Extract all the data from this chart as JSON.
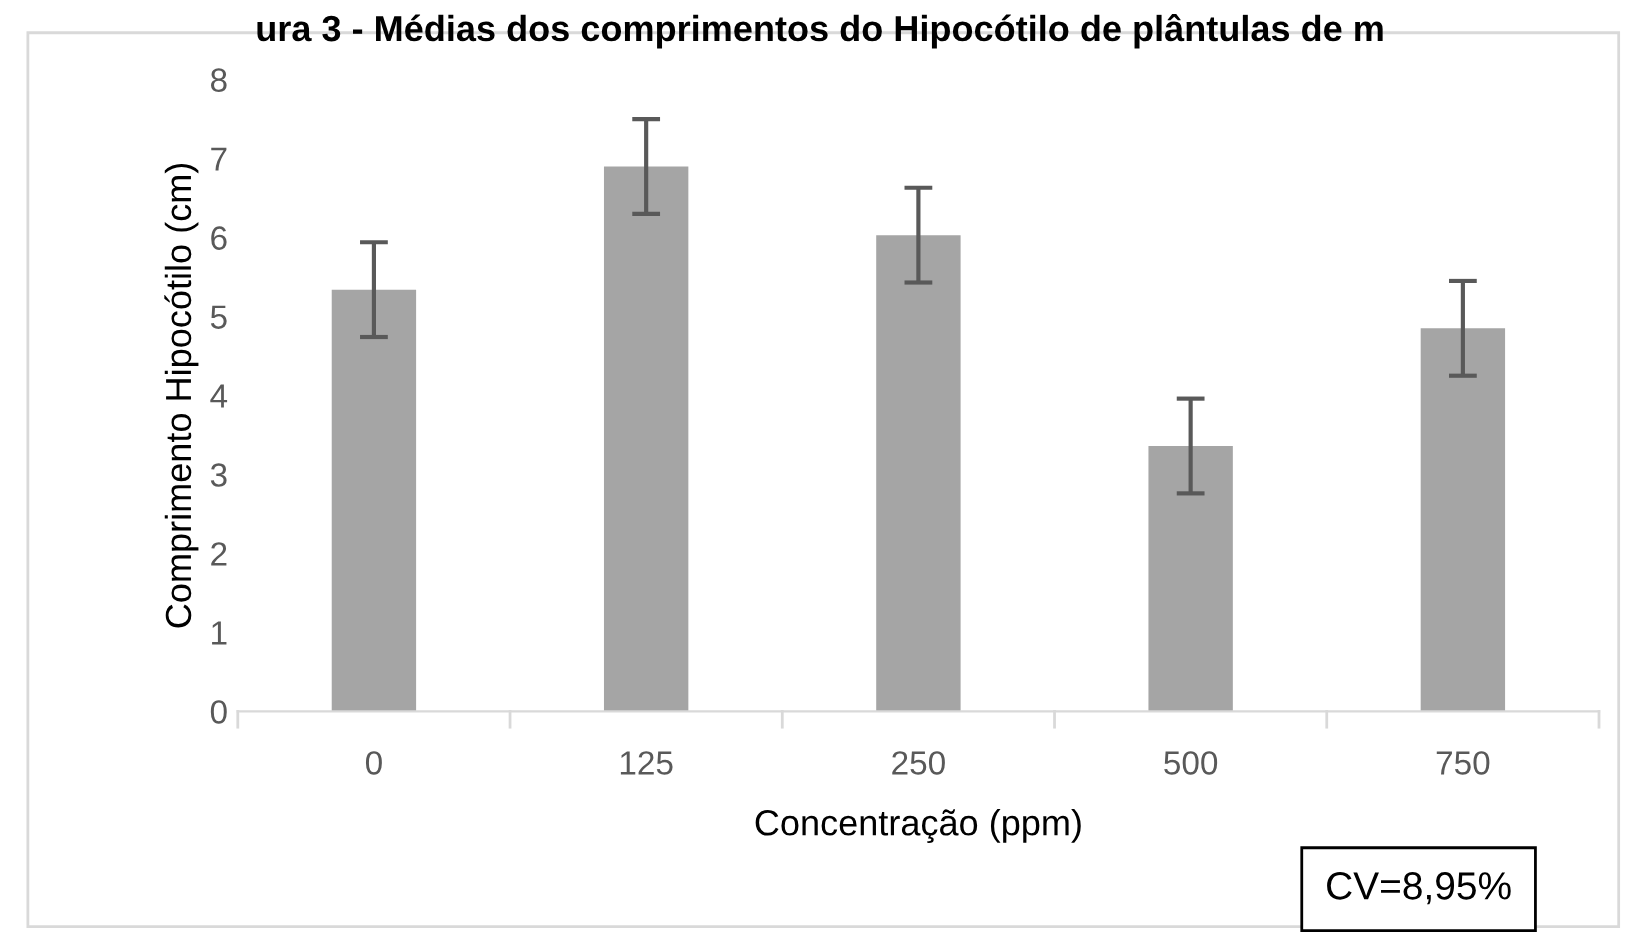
{
  "chart_data": {
    "type": "bar",
    "title": "ura 3 - Médias dos comprimentos do Hipocótilo de plântulas de m",
    "xlabel": "Concentração (ppm)",
    "ylabel": "Comprimento Hipocótilo (cm)",
    "categories": [
      "0",
      "125",
      "250",
      "500",
      "750"
    ],
    "values": [
      5.34,
      6.9,
      6.03,
      3.36,
      4.85
    ],
    "errors": [
      0.6,
      0.6,
      0.6,
      0.6,
      0.6
    ],
    "color": "#a5a5a5",
    "ylim": [
      0,
      8
    ],
    "yticks": [
      0,
      1,
      2,
      3,
      4,
      5,
      6,
      7,
      8
    ],
    "grid": false,
    "annotations": [
      "CV=8,95%"
    ]
  }
}
